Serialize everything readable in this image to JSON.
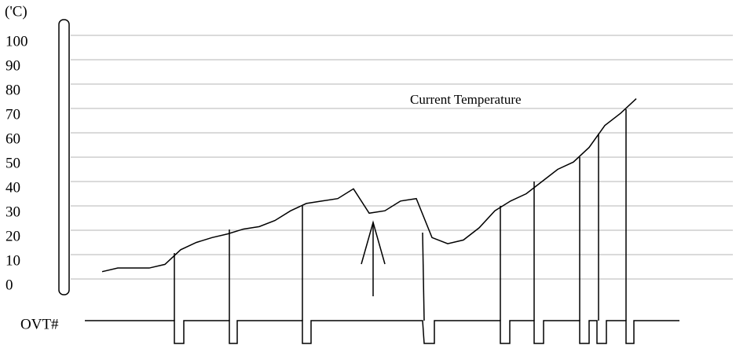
{
  "chart_data": {
    "type": "line",
    "y_label": "('C)",
    "annotation": "Current Temperature",
    "signal_label": "OVT#",
    "series": [
      {
        "name": "Current Temperature",
        "color": "#000000",
        "values": [
          3,
          4.5,
          4.5,
          4.5,
          6,
          12,
          15,
          17,
          18.5,
          20.5,
          21.5,
          24,
          28,
          31,
          32,
          33,
          37,
          27,
          28,
          32,
          33,
          17,
          14.5,
          16,
          21,
          28,
          32,
          35,
          40,
          45,
          48,
          54,
          63,
          68,
          74
        ]
      }
    ],
    "ylim": [
      0,
      100
    ],
    "yticks": [
      0,
      10,
      20,
      30,
      40,
      50,
      60,
      70,
      80,
      90,
      100
    ],
    "grid": true
  }
}
